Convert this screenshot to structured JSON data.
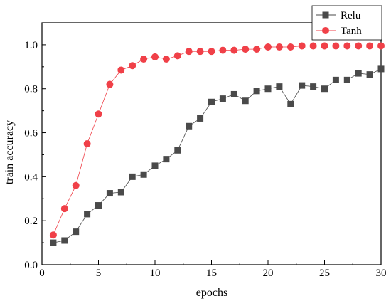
{
  "chart_data": {
    "type": "line",
    "xlabel": "epochs",
    "ylabel": "train accuracy",
    "xlim": [
      0,
      30
    ],
    "ylim": [
      0.0,
      1.1
    ],
    "x_ticks": [
      0,
      5,
      10,
      15,
      20,
      25,
      30
    ],
    "y_ticks": [
      0.0,
      0.2,
      0.4,
      0.6,
      0.8,
      1.0
    ],
    "x_tick_labels": [
      "0",
      "5",
      "10",
      "15",
      "20",
      "25",
      "30"
    ],
    "y_tick_labels": [
      "0.0",
      "0.2",
      "0.4",
      "0.6",
      "0.8",
      "1.0"
    ],
    "grid": false,
    "legend_position": "top-right",
    "x": [
      1,
      2,
      3,
      4,
      5,
      6,
      7,
      8,
      9,
      10,
      11,
      12,
      13,
      14,
      15,
      16,
      17,
      18,
      19,
      20,
      21,
      22,
      23,
      24,
      25,
      26,
      27,
      28,
      29,
      30
    ],
    "series": [
      {
        "name": "Relu",
        "marker": "square",
        "color": "#4a4a4a",
        "values": [
          0.1,
          0.11,
          0.15,
          0.23,
          0.27,
          0.325,
          0.33,
          0.4,
          0.41,
          0.45,
          0.48,
          0.52,
          0.63,
          0.665,
          0.74,
          0.755,
          0.775,
          0.745,
          0.79,
          0.8,
          0.81,
          0.73,
          0.815,
          0.81,
          0.8,
          0.84,
          0.84,
          0.87,
          0.865,
          0.89
        ]
      },
      {
        "name": "Tanh",
        "marker": "circle",
        "color": "#f04048",
        "values": [
          0.135,
          0.255,
          0.36,
          0.55,
          0.685,
          0.82,
          0.885,
          0.905,
          0.935,
          0.945,
          0.935,
          0.95,
          0.97,
          0.97,
          0.97,
          0.975,
          0.975,
          0.98,
          0.98,
          0.99,
          0.99,
          0.99,
          0.995,
          0.995,
          0.995,
          0.995,
          0.995,
          0.995,
          0.995,
          0.995
        ]
      }
    ]
  }
}
